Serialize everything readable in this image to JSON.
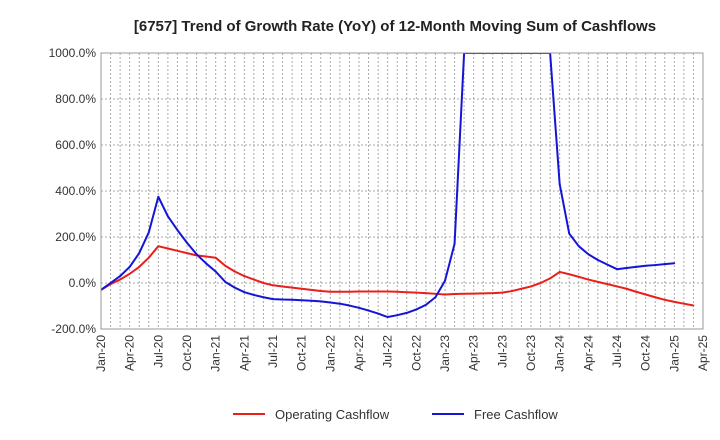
{
  "chart_data": {
    "type": "line",
    "title": "[6757]  Trend of Growth Rate (YoY) of 12-Month Moving Sum of Cashflows",
    "xlabel": "",
    "ylabel": "",
    "ylim": [
      -200,
      1000
    ],
    "yticks": [
      -200,
      0,
      200,
      400,
      600,
      800,
      1000
    ],
    "ytick_labels": [
      "-200.0%",
      "0.0%",
      "200.0%",
      "400.0%",
      "600.0%",
      "800.0%",
      "1000.0%"
    ],
    "x_range": [
      "2020-01",
      "2025-04"
    ],
    "xtick_labels": [
      "Jan-20",
      "Apr-20",
      "Jul-20",
      "Oct-20",
      "Jan-21",
      "Apr-21",
      "Jul-21",
      "Oct-21",
      "Jan-22",
      "Apr-22",
      "Jul-22",
      "Oct-22",
      "Jan-23",
      "Apr-23",
      "Jul-23",
      "Oct-23",
      "Jan-24",
      "Apr-24",
      "Jul-24",
      "Oct-24",
      "Jan-25",
      "Apr-25"
    ],
    "grid": true,
    "legend_position": "bottom",
    "series": [
      {
        "name": "Operating Cashflow",
        "color": "#e8201c",
        "points": [
          [
            "2020-01",
            -30
          ],
          [
            "2020-02",
            -5
          ],
          [
            "2020-03",
            15
          ],
          [
            "2020-04",
            40
          ],
          [
            "2020-05",
            70
          ],
          [
            "2020-06",
            110
          ],
          [
            "2020-07",
            160
          ],
          [
            "2020-08",
            150
          ],
          [
            "2020-09",
            140
          ],
          [
            "2020-10",
            130
          ],
          [
            "2020-11",
            120
          ],
          [
            "2020-12",
            115
          ],
          [
            "2021-01",
            110
          ],
          [
            "2021-02",
            75
          ],
          [
            "2021-03",
            50
          ],
          [
            "2021-04",
            30
          ],
          [
            "2021-05",
            15
          ],
          [
            "2021-06",
            0
          ],
          [
            "2021-07",
            -10
          ],
          [
            "2021-08",
            -15
          ],
          [
            "2021-09",
            -20
          ],
          [
            "2021-10",
            -25
          ],
          [
            "2021-11",
            -30
          ],
          [
            "2021-12",
            -35
          ],
          [
            "2022-01",
            -38
          ],
          [
            "2022-02",
            -38
          ],
          [
            "2022-03",
            -38
          ],
          [
            "2022-04",
            -37
          ],
          [
            "2022-05",
            -37
          ],
          [
            "2022-06",
            -37
          ],
          [
            "2022-07",
            -37
          ],
          [
            "2022-08",
            -38
          ],
          [
            "2022-09",
            -40
          ],
          [
            "2022-10",
            -42
          ],
          [
            "2022-11",
            -44
          ],
          [
            "2022-12",
            -47
          ],
          [
            "2023-01",
            -50
          ],
          [
            "2023-02",
            -48
          ],
          [
            "2023-03",
            -47
          ],
          [
            "2023-04",
            -46
          ],
          [
            "2023-05",
            -45
          ],
          [
            "2023-06",
            -44
          ],
          [
            "2023-07",
            -42
          ],
          [
            "2023-08",
            -35
          ],
          [
            "2023-09",
            -25
          ],
          [
            "2023-10",
            -15
          ],
          [
            "2023-11",
            0
          ],
          [
            "2023-12",
            20
          ],
          [
            "2024-01",
            48
          ],
          [
            "2024-02",
            38
          ],
          [
            "2024-03",
            27
          ],
          [
            "2024-04",
            15
          ],
          [
            "2024-05",
            5
          ],
          [
            "2024-06",
            -5
          ],
          [
            "2024-07",
            -15
          ],
          [
            "2024-08",
            -25
          ],
          [
            "2024-09",
            -38
          ],
          [
            "2024-10",
            -50
          ],
          [
            "2024-11",
            -62
          ],
          [
            "2024-12",
            -73
          ],
          [
            "2025-01",
            -82
          ],
          [
            "2025-02",
            -90
          ],
          [
            "2025-03",
            -98
          ]
        ]
      },
      {
        "name": "Free Cashflow",
        "color": "#1515d6",
        "points": [
          [
            "2020-01",
            -30
          ],
          [
            "2020-02",
            0
          ],
          [
            "2020-03",
            30
          ],
          [
            "2020-04",
            70
          ],
          [
            "2020-05",
            130
          ],
          [
            "2020-06",
            220
          ],
          [
            "2020-07",
            375
          ],
          [
            "2020-08",
            290
          ],
          [
            "2020-09",
            230
          ],
          [
            "2020-10",
            175
          ],
          [
            "2020-11",
            125
          ],
          [
            "2020-12",
            85
          ],
          [
            "2021-01",
            50
          ],
          [
            "2021-02",
            5
          ],
          [
            "2021-03",
            -20
          ],
          [
            "2021-04",
            -40
          ],
          [
            "2021-05",
            -52
          ],
          [
            "2021-06",
            -62
          ],
          [
            "2021-07",
            -70
          ],
          [
            "2021-08",
            -72
          ],
          [
            "2021-09",
            -73
          ],
          [
            "2021-10",
            -75
          ],
          [
            "2021-11",
            -77
          ],
          [
            "2021-12",
            -80
          ],
          [
            "2022-01",
            -85
          ],
          [
            "2022-02",
            -90
          ],
          [
            "2022-03",
            -98
          ],
          [
            "2022-04",
            -108
          ],
          [
            "2022-05",
            -120
          ],
          [
            "2022-06",
            -133
          ],
          [
            "2022-07",
            -148
          ],
          [
            "2022-08",
            -140
          ],
          [
            "2022-09",
            -130
          ],
          [
            "2022-10",
            -115
          ],
          [
            "2022-11",
            -95
          ],
          [
            "2022-12",
            -62
          ],
          [
            "2023-01",
            10
          ],
          [
            "2023-02",
            170
          ],
          [
            "2023-03",
            1000
          ],
          [
            "2023-12",
            1000
          ],
          [
            "2024-01",
            430
          ],
          [
            "2024-02",
            215
          ],
          [
            "2024-03",
            160
          ],
          [
            "2024-04",
            125
          ],
          [
            "2024-05",
            100
          ],
          [
            "2024-06",
            80
          ],
          [
            "2024-07",
            60
          ],
          [
            "2024-08",
            65
          ],
          [
            "2024-09",
            70
          ],
          [
            "2024-10",
            75
          ],
          [
            "2024-11",
            78
          ],
          [
            "2024-12",
            82
          ],
          [
            "2025-01",
            86
          ]
        ]
      }
    ]
  }
}
